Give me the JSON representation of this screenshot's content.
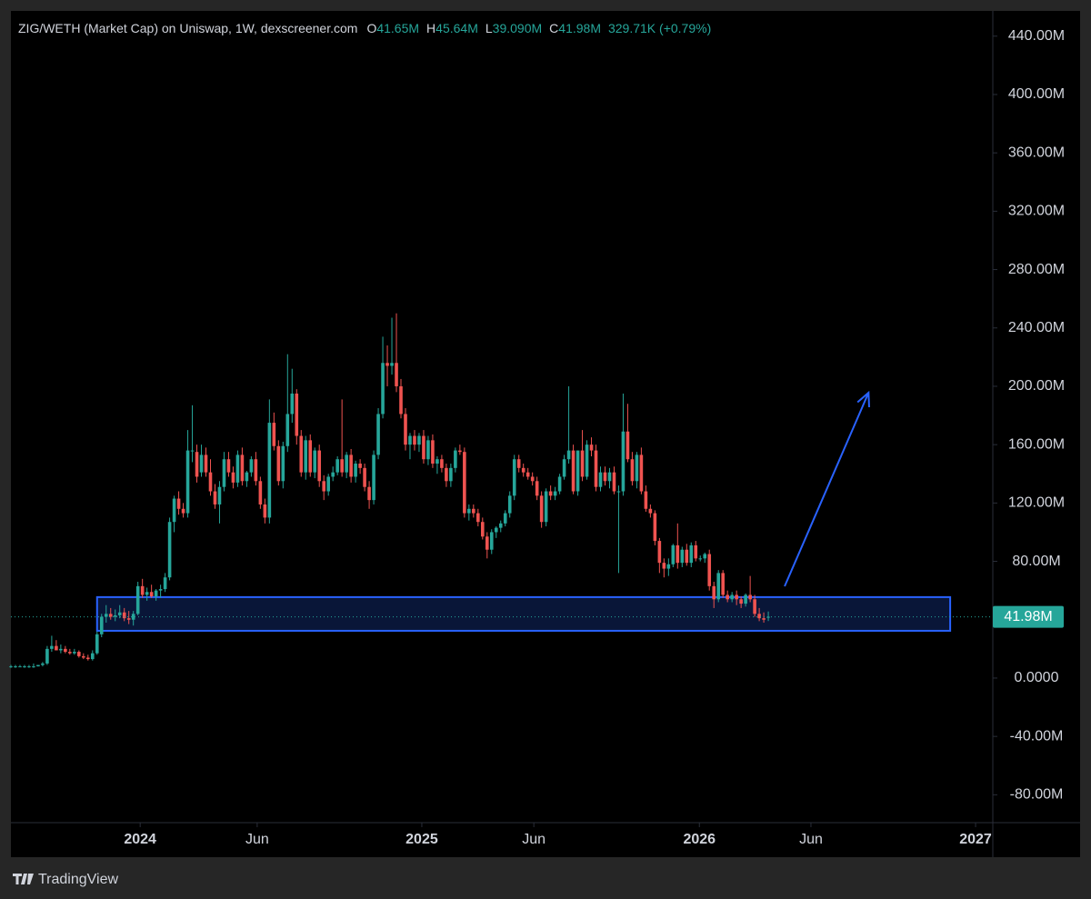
{
  "chart_data": {
    "type": "candlestick",
    "title": "ZIG/WETH (Market Cap) on Uniswap, 1W, dexscreener.com",
    "ohlc": [
      {
        "key": "O",
        "value": "41.65M"
      },
      {
        "key": "H",
        "value": "45.64M"
      },
      {
        "key": "L",
        "value": "39.090M"
      },
      {
        "key": "C",
        "value": "41.98M"
      }
    ],
    "change": "329.71K (+0.79%)",
    "brand": "TradingView",
    "up_color": "#26a69a",
    "down_color": "#ef5350",
    "xlim": [
      0,
      216.5
    ],
    "xticks": [
      {
        "value": 28.5,
        "label": "2024"
      },
      {
        "value": 54.3,
        "label": "Jun"
      },
      {
        "value": 90.6,
        "label": "2025"
      },
      {
        "value": 115.3,
        "label": "Jun"
      },
      {
        "value": 151.8,
        "label": "2026"
      },
      {
        "value": 176.4,
        "label": "Jun"
      },
      {
        "value": 212.7,
        "label": "2027"
      }
    ],
    "ylim": [
      -99.1,
      457.3
    ],
    "yticks": [
      {
        "value": 440,
        "label": "440.00M"
      },
      {
        "value": 400,
        "label": "400.00M"
      },
      {
        "value": 360,
        "label": "360.00M"
      },
      {
        "value": 320,
        "label": "320.00M"
      },
      {
        "value": 280,
        "label": "280.00M"
      },
      {
        "value": 240,
        "label": "240.00M"
      },
      {
        "value": 200,
        "label": "200.00M"
      },
      {
        "value": 160,
        "label": "160.00M"
      },
      {
        "value": 120,
        "label": "120.00M"
      },
      {
        "value": 80,
        "label": "80.00M"
      },
      {
        "value": 0,
        "label": "0.0000"
      },
      {
        "value": -40,
        "label": "-40.00M"
      },
      {
        "value": -80,
        "label": "-80.00M"
      }
    ],
    "last_price": {
      "value": 41.98,
      "label": "41.98M"
    },
    "zone": {
      "x": [
        19.0,
        207.1
      ],
      "y": [
        32.4,
        55.5
      ],
      "color": "#2962ff"
    },
    "arrow": {
      "x": [
        170.6,
        189.1
      ],
      "y": [
        62.9,
        195.6
      ],
      "color": "#2962ff"
    },
    "x": [
      0,
      1,
      2,
      3,
      4,
      5,
      6,
      7,
      8,
      9,
      10,
      11,
      12,
      13,
      14,
      15,
      16,
      17,
      18,
      19,
      20,
      21,
      22,
      23,
      24,
      25,
      26,
      27,
      28,
      29,
      30,
      31,
      32,
      33,
      34,
      35,
      36,
      37,
      38,
      39,
      40,
      41,
      42,
      43,
      44,
      45,
      46,
      47,
      48,
      49,
      50,
      51,
      52,
      53,
      54,
      55,
      56,
      57,
      58,
      59,
      60,
      61,
      62,
      63,
      64,
      65,
      66,
      67,
      68,
      69,
      70,
      71,
      72,
      73,
      74,
      75,
      76,
      77,
      78,
      79,
      80,
      81,
      82,
      83,
      84,
      85,
      86,
      87,
      88,
      89,
      90,
      91,
      92,
      93,
      94,
      95,
      96,
      97,
      98,
      99,
      100,
      101,
      102,
      103,
      104,
      105,
      106,
      107,
      108,
      109,
      110,
      111,
      112,
      113,
      114,
      115,
      116,
      117,
      118,
      119,
      120,
      121,
      122,
      123,
      124,
      125,
      126,
      127,
      128,
      129,
      130,
      131,
      132,
      133,
      134,
      135,
      136,
      137,
      138,
      139,
      140,
      141,
      142,
      143,
      144,
      145,
      146,
      147,
      148,
      149,
      150,
      151,
      152,
      153,
      154,
      155,
      156,
      157,
      158,
      159,
      160,
      161,
      162,
      163,
      164,
      165,
      166,
      167
    ],
    "open": [
      8,
      8,
      8,
      8,
      8,
      8,
      8,
      9,
      10,
      20,
      22,
      19,
      20,
      18,
      17,
      18,
      15,
      14,
      13,
      17,
      30,
      42,
      44,
      42,
      43,
      45,
      41,
      40,
      44,
      63,
      57,
      59,
      56,
      60,
      61,
      69,
      107,
      123,
      116,
      113,
      156,
      155,
      141,
      153,
      141,
      128,
      119,
      131,
      150,
      141,
      134,
      153,
      135,
      141,
      150,
      135,
      119,
      110,
      175,
      159,
      135,
      159,
      181,
      195,
      166,
      141,
      163,
      141,
      156,
      135,
      128,
      138,
      141,
      150,
      141,
      153,
      138,
      147,
      144,
      131,
      122,
      153,
      181,
      216,
      214,
      216,
      200,
      181,
      160,
      166,
      160,
      166,
      150,
      163,
      147,
      150,
      144,
      135,
      144,
      156,
      155,
      113,
      116,
      113,
      107,
      97,
      88,
      100,
      103,
      106,
      113,
      125,
      150,
      144,
      141,
      138,
      135,
      125,
      107,
      128,
      125,
      128,
      138,
      150,
      156,
      128,
      156,
      138,
      160,
      156,
      131,
      141,
      135,
      141,
      128,
      128,
      169,
      150,
      135,
      153,
      128,
      116,
      113,
      94,
      79,
      75,
      78,
      91,
      79,
      88,
      79,
      91,
      82,
      82,
      85,
      63,
      54,
      72,
      57,
      54,
      57,
      54,
      51,
      57,
      54,
      44,
      41,
      41.65
    ],
    "high": [
      9,
      9,
      9,
      9,
      9,
      10,
      9,
      11,
      22,
      29,
      26,
      23,
      22,
      20,
      20,
      19,
      17,
      16,
      19,
      32,
      44,
      50,
      48,
      47,
      50,
      48,
      46,
      46,
      66,
      68,
      62,
      64,
      61,
      64,
      72,
      110,
      125,
      128,
      120,
      170,
      187,
      160,
      160,
      158,
      150,
      133,
      135,
      155,
      155,
      145,
      156,
      158,
      142,
      152,
      155,
      138,
      123,
      191,
      182,
      163,
      162,
      222,
      212,
      198,
      170,
      166,
      167,
      158,
      160,
      139,
      140,
      145,
      152,
      191,
      155,
      157,
      149,
      150,
      147,
      135,
      156,
      185,
      234,
      228,
      247,
      250,
      205,
      185,
      168,
      170,
      168,
      170,
      166,
      167,
      152,
      153,
      147,
      147,
      158,
      160,
      158,
      119,
      119,
      116,
      110,
      100,
      102,
      104,
      108,
      115,
      128,
      153,
      153,
      147,
      144,
      141,
      138,
      128,
      130,
      132,
      131,
      140,
      153,
      200,
      160,
      156,
      170,
      163,
      165,
      160,
      145,
      145,
      144,
      145,
      132,
      195,
      188,
      155,
      155,
      158,
      132,
      119,
      115,
      96,
      82,
      82,
      92,
      106,
      90,
      92,
      93,
      94,
      84,
      86,
      88,
      66,
      74,
      74,
      60,
      59,
      60,
      56,
      58,
      70,
      57,
      48,
      45,
      45.64
    ],
    "low": [
      7,
      7,
      8,
      7,
      7,
      7,
      8,
      8,
      9,
      18,
      19,
      17,
      17,
      16,
      16,
      14,
      13,
      12,
      12,
      16,
      28,
      38,
      40,
      39,
      41,
      39,
      37,
      36,
      43,
      55,
      53,
      55,
      53,
      55,
      59,
      67,
      100,
      112,
      110,
      110,
      148,
      134,
      138,
      138,
      125,
      116,
      106,
      128,
      138,
      130,
      131,
      132,
      131,
      138,
      132,
      116,
      106,
      106,
      156,
      132,
      130,
      155,
      175,
      160,
      138,
      136,
      138,
      137,
      131,
      122,
      125,
      135,
      139,
      138,
      137,
      134,
      134,
      140,
      128,
      116,
      119,
      150,
      178,
      200,
      208,
      196,
      178,
      156,
      150,
      156,
      155,
      147,
      146,
      144,
      140,
      141,
      131,
      131,
      141,
      153,
      110,
      108,
      110,
      104,
      95,
      82,
      85,
      96,
      100,
      104,
      110,
      122,
      141,
      138,
      136,
      132,
      122,
      103,
      104,
      122,
      122,
      126,
      136,
      147,
      126,
      125,
      135,
      136,
      152,
      128,
      128,
      132,
      130,
      126,
      72,
      125,
      148,
      132,
      130,
      126,
      114,
      110,
      91,
      72,
      69,
      70,
      76,
      75,
      76,
      77,
      76,
      80,
      80,
      79,
      60,
      48,
      52,
      55,
      52,
      52,
      50,
      48,
      49,
      52,
      42,
      39,
      38,
      39.09
    ],
    "close": [
      8,
      8,
      8,
      8,
      8,
      8,
      9,
      10,
      20,
      22,
      19,
      20,
      18,
      17,
      18,
      15,
      14,
      13,
      17,
      30,
      42,
      44,
      42,
      43,
      45,
      41,
      40,
      44,
      63,
      57,
      59,
      56,
      60,
      61,
      69,
      107,
      123,
      116,
      113,
      156,
      156,
      138,
      153,
      141,
      128,
      119,
      131,
      150,
      141,
      134,
      153,
      135,
      141,
      150,
      135,
      119,
      110,
      175,
      159,
      135,
      159,
      181,
      195,
      166,
      141,
      163,
      141,
      156,
      135,
      128,
      138,
      141,
      150,
      141,
      153,
      138,
      147,
      144,
      131,
      122,
      153,
      181,
      216,
      214,
      216,
      200,
      181,
      160,
      166,
      160,
      166,
      150,
      163,
      147,
      150,
      144,
      135,
      144,
      156,
      155,
      113,
      116,
      113,
      107,
      97,
      88,
      100,
      103,
      106,
      113,
      125,
      150,
      144,
      141,
      138,
      135,
      125,
      107,
      128,
      125,
      128,
      138,
      150,
      156,
      128,
      156,
      138,
      160,
      156,
      131,
      141,
      135,
      141,
      128,
      128,
      169,
      150,
      135,
      153,
      128,
      116,
      113,
      94,
      79,
      75,
      78,
      91,
      79,
      88,
      79,
      91,
      82,
      82,
      85,
      63,
      54,
      72,
      57,
      54,
      57,
      54,
      51,
      57,
      54,
      44,
      41,
      40,
      41.98
    ]
  }
}
